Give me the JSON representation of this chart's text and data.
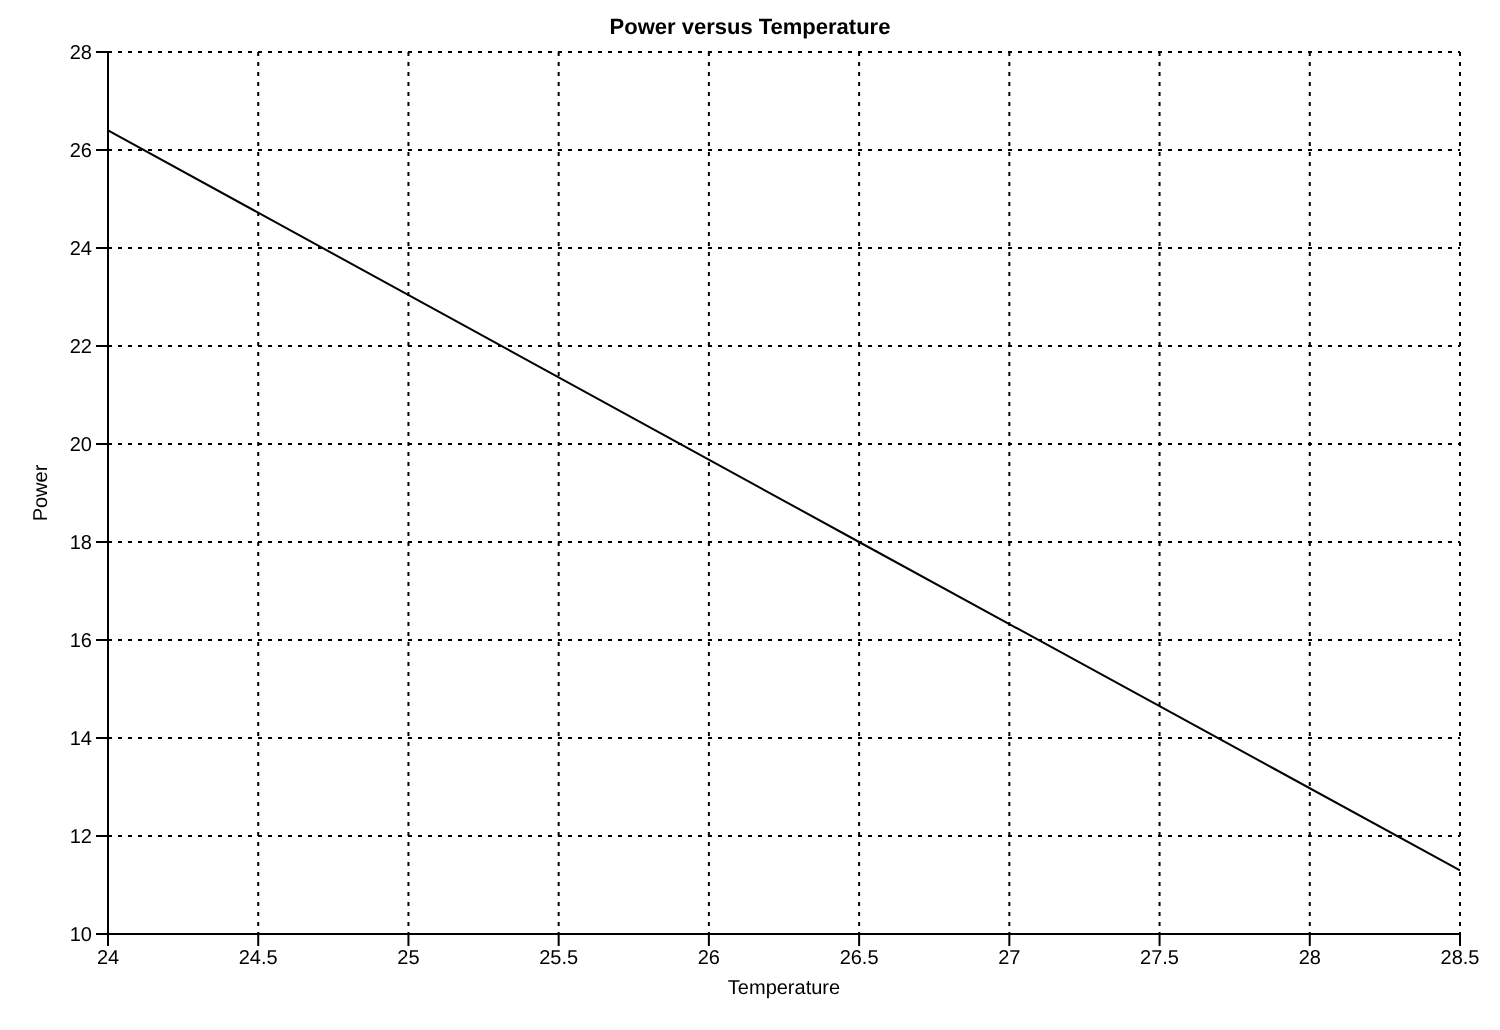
{
  "chart_data": {
    "type": "line",
    "title": "Power versus Temperature",
    "xlabel": "Temperature",
    "ylabel": "Power",
    "x": [
      24,
      26.5,
      28.5
    ],
    "series": [
      {
        "color": "#000000",
        "values": [
          26.4,
          18.0,
          11.3
        ]
      }
    ],
    "xlim": [
      24,
      28.5
    ],
    "xticks": [
      24,
      24.5,
      25,
      25.5,
      26,
      26.5,
      27,
      27.5,
      28,
      28.5
    ],
    "ylim": [
      10,
      28
    ],
    "yticks": [
      10,
      12,
      14,
      16,
      18,
      20,
      22,
      24,
      26,
      28
    ],
    "grid": true,
    "marker": "none",
    "line_style": "solid"
  }
}
